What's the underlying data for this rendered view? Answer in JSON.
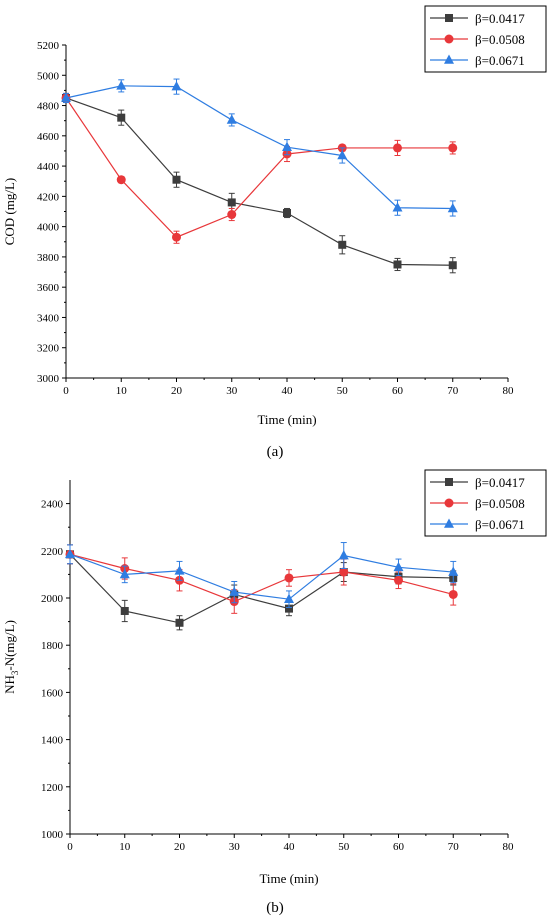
{
  "colors": {
    "series_0": "#3d3d3d",
    "series_1": "#e8373a",
    "series_2": "#2f7de1"
  },
  "chart_data": [
    {
      "type": "line",
      "caption": "(a)",
      "xlabel": "Time (min)",
      "ylabel": "COD (mg/L)",
      "xlim": [
        0,
        80
      ],
      "ylim": [
        3000,
        5200
      ],
      "xticks": [
        0,
        10,
        20,
        30,
        40,
        50,
        60,
        70,
        80
      ],
      "yticks": [
        3000,
        3200,
        3400,
        3600,
        3800,
        4000,
        4200,
        4400,
        4600,
        4800,
        5000,
        5200
      ],
      "x": [
        0,
        10,
        20,
        30,
        40,
        50,
        60,
        70
      ],
      "grid": false,
      "legend_position": "top-right",
      "series": [
        {
          "name": "β=0.0417",
          "marker": "square",
          "values": [
            4850,
            4720,
            4310,
            4160,
            4090,
            3880,
            3750,
            3745
          ],
          "errors": [
            30,
            50,
            50,
            60,
            30,
            60,
            40,
            50
          ]
        },
        {
          "name": "β=0.0508",
          "marker": "circle",
          "values": [
            4850,
            4310,
            3930,
            4080,
            4480,
            4520,
            4520,
            4520
          ],
          "errors": [
            30,
            20,
            40,
            40,
            50,
            20,
            50,
            40
          ]
        },
        {
          "name": "β=0.0671",
          "marker": "triangle",
          "values": [
            4850,
            4930,
            4925,
            4705,
            4525,
            4470,
            4125,
            4120
          ],
          "errors": [
            30,
            40,
            50,
            40,
            50,
            50,
            50,
            50
          ]
        }
      ]
    },
    {
      "type": "line",
      "caption": "(b)",
      "xlabel": "Time (min)",
      "ylabel": "NH3-N(mg/L)",
      "ylabel_parts": {
        "before": "NH",
        "sub": "3",
        "after": "-N(mg/L)"
      },
      "xlim": [
        0,
        80
      ],
      "ylim": [
        1000,
        2500
      ],
      "xticks": [
        0,
        10,
        20,
        30,
        40,
        50,
        60,
        70,
        80
      ],
      "yticks": [
        1000,
        1200,
        1400,
        1600,
        1800,
        2000,
        2200,
        2400
      ],
      "x": [
        0,
        10,
        20,
        30,
        40,
        50,
        60,
        70
      ],
      "grid": false,
      "legend_position": "top-right",
      "series": [
        {
          "name": "β=0.0417",
          "marker": "square",
          "values": [
            2185,
            1945,
            1895,
            2015,
            1955,
            2110,
            2090,
            2085
          ],
          "errors": [
            40,
            45,
            30,
            40,
            30,
            40,
            30,
            30
          ]
        },
        {
          "name": "β=0.0508",
          "marker": "circle",
          "values": [
            2185,
            2125,
            2075,
            1985,
            2085,
            2110,
            2075,
            2015
          ],
          "errors": [
            40,
            45,
            45,
            50,
            35,
            55,
            35,
            45
          ]
        },
        {
          "name": "β=0.0671",
          "marker": "triangle",
          "values": [
            2185,
            2100,
            2115,
            2025,
            1995,
            2180,
            2130,
            2110
          ],
          "errors": [
            40,
            35,
            40,
            45,
            35,
            55,
            35,
            45
          ]
        }
      ]
    }
  ]
}
